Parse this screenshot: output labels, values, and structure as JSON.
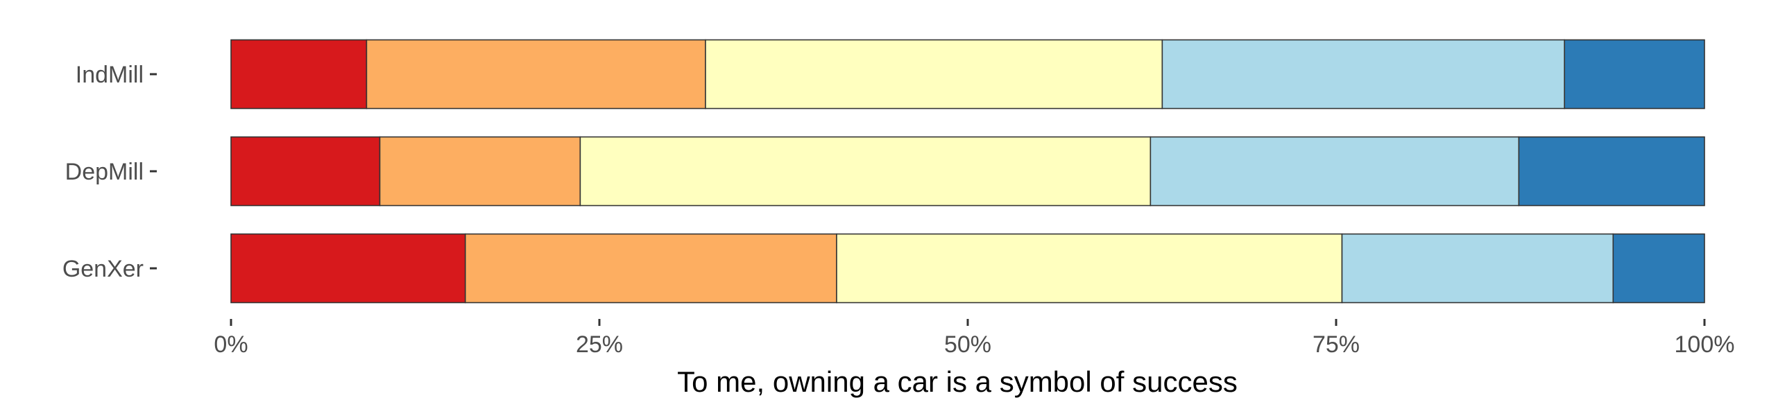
{
  "chart_data": {
    "type": "bar",
    "orientation": "horizontal",
    "stacked": true,
    "categories": [
      "IndMill",
      "DepMill",
      "GenXer"
    ],
    "series": [
      {
        "values": [
          0.092,
          0.101,
          0.159
        ],
        "color": "#d7191c"
      },
      {
        "values": [
          0.23,
          0.136,
          0.252
        ],
        "color": "#fdae61"
      },
      {
        "values": [
          0.31,
          0.387,
          0.343
        ],
        "color": "#ffffbf"
      },
      {
        "values": [
          0.273,
          0.25,
          0.184
        ],
        "color": "#abd9e9"
      },
      {
        "values": [
          0.095,
          0.126,
          0.062
        ],
        "color": "#2c7bb6"
      }
    ],
    "x_ticks": [
      {
        "value": 0,
        "label": "0%"
      },
      {
        "value": 0.25,
        "label": "25%"
      },
      {
        "value": 0.5,
        "label": "50%"
      },
      {
        "value": 0.75,
        "label": "75%"
      },
      {
        "value": 1,
        "label": "100%"
      }
    ],
    "xlim": [
      0,
      1
    ],
    "xlabel": "To me, owning a car is a symbol of success",
    "ylabel": "",
    "title": "",
    "grid": false,
    "legend": "none"
  }
}
